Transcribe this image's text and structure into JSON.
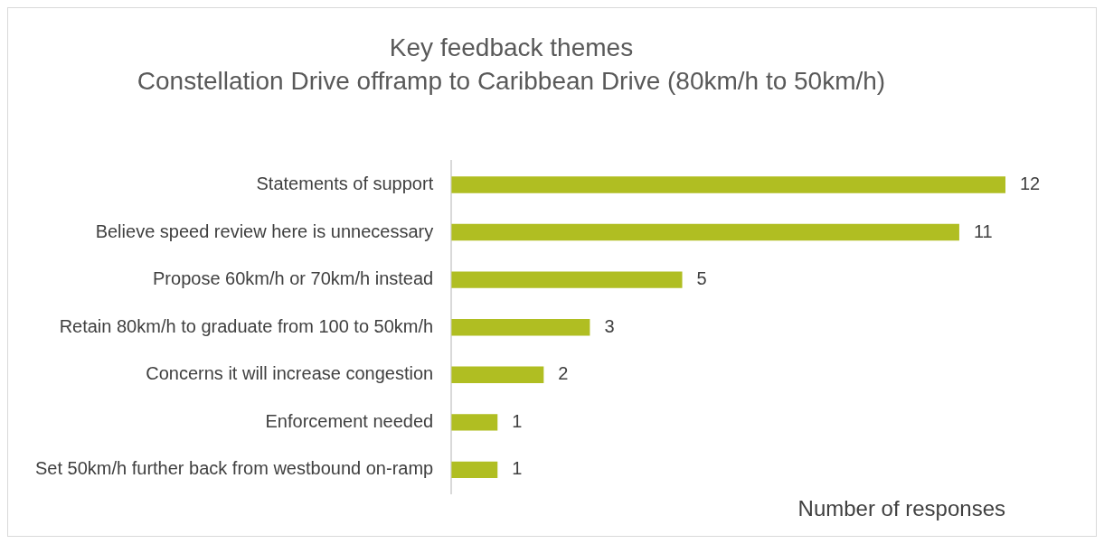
{
  "chart_data": {
    "type": "bar",
    "orientation": "horizontal",
    "title": "Key feedback themes",
    "subtitle": "Constellation Drive offramp to Caribbean Drive (80km/h to 50km/h)",
    "xlabel": "Number of responses",
    "categories": [
      "Statements of support",
      "Believe speed review here is unnecessary",
      "Propose 60km/h or 70km/h instead",
      "Retain 80km/h to graduate from 100 to 50km/h",
      "Concerns it will increase congestion",
      "Enforcement needed",
      "Set 50km/h further back from westbound on-ramp"
    ],
    "values": [
      12,
      11,
      5,
      3,
      2,
      1,
      1
    ],
    "color": "#b0be22",
    "data_labels": true,
    "tick_labels": "y",
    "grid": false
  }
}
